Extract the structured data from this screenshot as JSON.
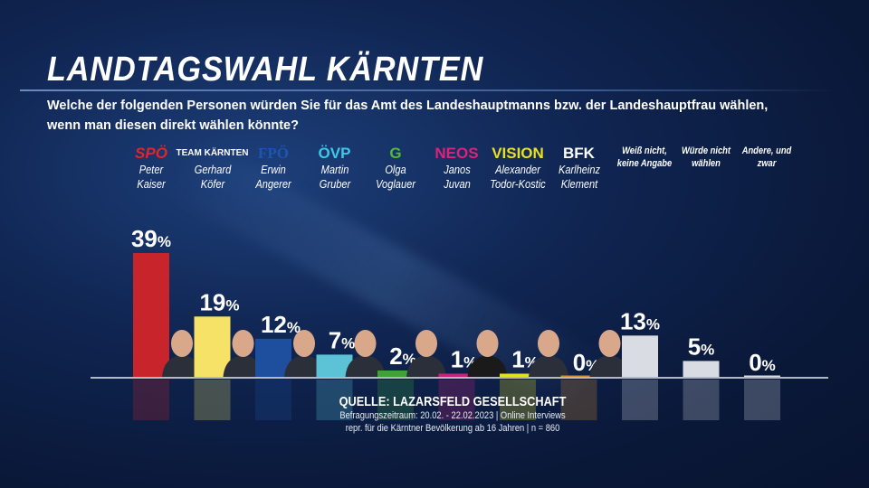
{
  "header": {
    "title": "LANDTAGSWAHL KÄRNTEN",
    "question": "Welche der folgenden Personen würden Sie für das Amt des Landeshauptmanns bzw. der Landeshauptfrau wählen, wenn man diesen direkt wählen könnte?"
  },
  "chart_data": {
    "type": "bar",
    "categories": [
      {
        "logo": "SPÖ",
        "name": "Peter Kaiser",
        "color": "#c8242b",
        "logo_color": "#e0252b"
      },
      {
        "logo": "TEAM KÄRNTEN",
        "name": "Gerhard Köfer",
        "color": "#f5e266",
        "logo_color": "#ffffff"
      },
      {
        "logo": "FPÖ",
        "name": "Erwin Angerer",
        "color": "#1d4f9e",
        "logo_color": "#1d56b0"
      },
      {
        "logo": "ÖVP",
        "name": "Martin Gruber",
        "color": "#5cc2d6",
        "logo_color": "#3ec8e8"
      },
      {
        "logo": "G",
        "name": "Olga Voglauer",
        "color": "#3ca23a",
        "logo_color": "#55b83a"
      },
      {
        "logo": "NEOS",
        "name": "Janos Juvan",
        "color": "#c8237a",
        "logo_color": "#e0217a"
      },
      {
        "logo": "VISION",
        "name": "Alexander Todor-Kostic",
        "color": "#e6df20",
        "logo_color": "#e8e020"
      },
      {
        "logo": "BFK",
        "name": "Karlheinz Klement",
        "color": "#d48a2a",
        "logo_color": "#ffffff"
      },
      {
        "logo": "",
        "name": "Weiß nicht, keine Angabe",
        "color": "#d9dde3"
      },
      {
        "logo": "",
        "name": "Würde nicht wählen",
        "color": "#d9dde3"
      },
      {
        "logo": "",
        "name": "Andere, und zwar",
        "color": "#d9dde3"
      }
    ],
    "values": [
      39,
      19,
      12,
      7,
      2,
      1,
      1,
      0,
      13,
      5,
      0
    ],
    "unit": "%",
    "ylim": [
      0,
      40
    ],
    "grid": false
  },
  "source": {
    "title": "QUELLE:  LAZARSFELD GESELLSCHAFT",
    "line1": "Befragungszeitraum: 20.02. - 22.02.2023 | Online Interviews",
    "line2": "repr. für die Kärntner Bevölkerung ab 16 Jahren | n = 860"
  }
}
